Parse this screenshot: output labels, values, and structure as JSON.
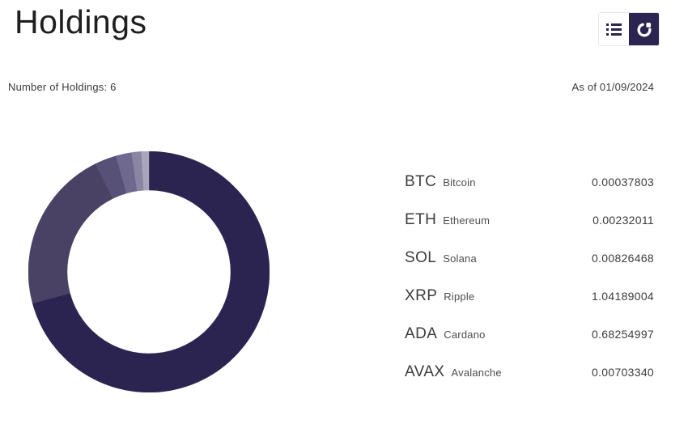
{
  "header": {
    "title": "Holdings",
    "view_toggle": {
      "options": [
        "list-view",
        "chart-view"
      ],
      "active": "chart-view"
    }
  },
  "meta": {
    "holdings_count_label": "Number of Holdings: 6",
    "as_of_label": "As of 01/09/2024"
  },
  "holdings": [
    {
      "symbol": "BTC",
      "name": "Bitcoin",
      "amount": "0.00037803"
    },
    {
      "symbol": "ETH",
      "name": "Ethereum",
      "amount": "0.00232011"
    },
    {
      "symbol": "SOL",
      "name": "Solana",
      "amount": "0.00826468"
    },
    {
      "symbol": "XRP",
      "name": "Ripple",
      "amount": "1.04189004"
    },
    {
      "symbol": "ADA",
      "name": "Cardano",
      "amount": "0.68254997"
    },
    {
      "symbol": "AVAX",
      "name": "Avalanche",
      "amount": "0.00703340"
    }
  ],
  "chart_data": {
    "type": "pie",
    "subtype": "donut",
    "title": "",
    "categories": [
      "BTC",
      "ETH",
      "SOL",
      "XRP",
      "ADA",
      "AVAX"
    ],
    "values_pct": [
      70.8,
      21.9,
      2.9,
      2.1,
      1.3,
      1.0
    ],
    "quantities": [
      0.00037803,
      0.00232011,
      0.00826468,
      1.04189004,
      0.68254997,
      0.0070334
    ],
    "colors": [
      "#2b2450",
      "#494264",
      "#575077",
      "#6f6990",
      "#8a85a3",
      "#a9a6ba"
    ],
    "start_angle_deg": 0,
    "direction": "clockwise",
    "inner_radius_ratio": 0.68,
    "legend_position": "right",
    "note": "slice percentages estimated from arc angles; legend shows coin quantities"
  },
  "colors": {
    "accent_dark": "#2b2450",
    "toggle_border": "#e7e6ee",
    "title_text": "#1f1f1f",
    "body_text": "#3c3c3c",
    "muted_text": "#4d4d4d"
  }
}
